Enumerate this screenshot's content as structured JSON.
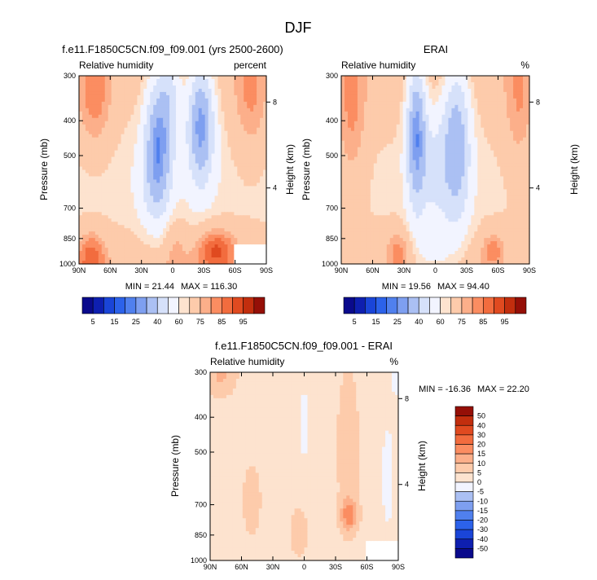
{
  "figure": {
    "title": "DJF",
    "colors": {
      "blues": [
        "#0a0a8c",
        "#0e1fb0",
        "#1a45d8",
        "#2c62ea",
        "#5080ee",
        "#7e9ff0",
        "#abc0f3",
        "#d6e1fa"
      ],
      "pale": "#f2f4ff",
      "reds": [
        "#fde3cf",
        "#fdcbab",
        "#fcaf8a",
        "#fb8d61",
        "#f26c3e",
        "#e04a20",
        "#c22e0e",
        "#950f07"
      ],
      "seasalt": "#fdefe4"
    }
  },
  "chart_data": [
    {
      "id": "model",
      "type": "heatmap",
      "title": "f.e11.F1850C5CN.f09_f09.001 (yrs 2500-2600)",
      "left_string": "Relative humidity",
      "right_string": "percent",
      "ylabel": "Pressure (mb)",
      "y2label": "Height (km)",
      "x_ticks": [
        "90N",
        "60N",
        "30N",
        "0",
        "30S",
        "60S",
        "90S"
      ],
      "y_ticks": [
        "300",
        "400",
        "500",
        "700",
        "850",
        "1000"
      ],
      "y2_ticks": [
        "8",
        "4"
      ],
      "xlim": [
        90,
        -90
      ],
      "ylim_mb": [
        300,
        1000
      ],
      "min_label": "MIN = 21.44",
      "max_label": "MAX = 116.30",
      "min": 21.44,
      "max": 116.3,
      "missing_region": {
        "lat": [
          -58,
          -90
        ],
        "p": [
          890,
          1000
        ]
      }
    },
    {
      "id": "obs",
      "type": "heatmap",
      "title": "ERAI",
      "left_string": "Relative humidity",
      "right_string": "%",
      "ylabel": "Pressure (mb)",
      "y2label": "Height (km)",
      "x_ticks": [
        "90N",
        "60N",
        "30N",
        "0",
        "30S",
        "60S",
        "90S"
      ],
      "y_ticks": [
        "300",
        "400",
        "500",
        "700",
        "850",
        "1000"
      ],
      "y2_ticks": [
        "8",
        "4"
      ],
      "xlim": [
        90,
        -90
      ],
      "ylim_mb": [
        300,
        1000
      ],
      "min_label": "MIN = 19.56",
      "max_label": "MAX = 94.40",
      "min": 19.56,
      "max": 94.4
    },
    {
      "id": "diff",
      "type": "heatmap",
      "title": "f.e11.F1850C5CN.f09_f09.001 - ERAI",
      "left_string": "Relative humidity",
      "right_string": "%",
      "ylabel": "Pressure (mb)",
      "y2label": "Height (km)",
      "x_ticks": [
        "90N",
        "60N",
        "30N",
        "0",
        "30S",
        "60S",
        "90S"
      ],
      "y_ticks": [
        "300",
        "400",
        "500",
        "700",
        "850",
        "1000"
      ],
      "y2_ticks": [
        "8",
        "4"
      ],
      "xlim": [
        90,
        -90
      ],
      "ylim_mb": [
        300,
        1000
      ],
      "min_label": "MIN = -16.36",
      "max_label": "MAX = 22.20",
      "min": -16.36,
      "max": 22.2,
      "missing_region": {
        "lat": [
          -58,
          -90
        ],
        "p": [
          890,
          1000
        ]
      }
    }
  ],
  "colorbars": {
    "main": {
      "labels": [
        "5",
        "15",
        "25",
        "40",
        "60",
        "75",
        "85",
        "95"
      ],
      "levels": [
        5,
        10,
        15,
        20,
        25,
        30,
        40,
        50,
        60,
        65,
        75,
        80,
        85,
        90,
        95
      ]
    },
    "diff": {
      "labels": [
        "50",
        "40",
        "30",
        "20",
        "15",
        "10",
        "5",
        "0",
        "-5",
        "-10",
        "-15",
        "-20",
        "-30",
        "-40",
        "-50"
      ],
      "levels": [
        50,
        40,
        30,
        20,
        15,
        10,
        5,
        0,
        -5,
        -10,
        -15,
        -20,
        -30,
        -40,
        -50
      ]
    }
  }
}
